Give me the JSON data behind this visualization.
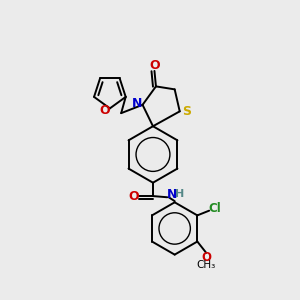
{
  "bg_color": "#ebebeb",
  "atom_colors": {
    "C": "#000000",
    "N": "#0000cc",
    "O": "#cc0000",
    "S": "#ccaa00",
    "Cl": "#228B22",
    "H": "#558888"
  },
  "bond_color": "#000000",
  "figsize": [
    3.0,
    3.0
  ],
  "dpi": 100
}
